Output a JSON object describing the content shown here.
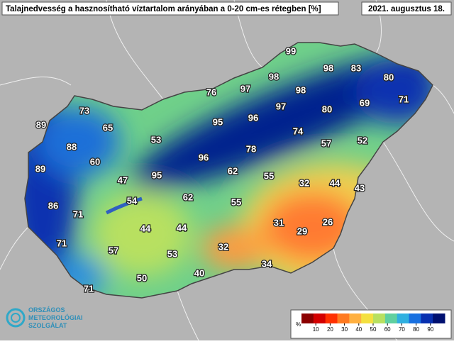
{
  "header": {
    "title": "Talajnedvesség a hasznosítható víztartalom arányában a 0-20 cm-es rétegben [%]",
    "date": "2021. augusztus 18."
  },
  "stations": [
    99,
    98,
    83,
    80,
    98,
    97,
    98,
    76,
    71,
    69,
    80,
    97,
    73,
    95,
    96,
    89,
    65,
    74,
    53,
    52,
    57,
    88,
    78,
    96,
    60,
    62,
    89,
    55,
    47,
    95,
    32,
    44,
    43,
    54,
    62,
    86,
    55,
    71,
    31,
    26,
    29,
    44,
    44,
    71,
    57,
    32,
    53,
    34,
    40,
    50,
    71
  ],
  "colorbar": {
    "unit": "%",
    "lim": [
      0,
      100
    ],
    "ticks": [
      10,
      20,
      30,
      40,
      50,
      60,
      70,
      80,
      90
    ],
    "colors": [
      "#8b0000",
      "#d40000",
      "#ff3000",
      "#ff7a20",
      "#ffb040",
      "#f4e040",
      "#b8e060",
      "#60d0a0",
      "#30b0e0",
      "#1870e0",
      "#0830b0",
      "#001070"
    ]
  },
  "logo": {
    "lines": [
      "ORSZÁGOS",
      "METEOROLÓGIAI",
      "SZOLGÁLAT"
    ]
  }
}
